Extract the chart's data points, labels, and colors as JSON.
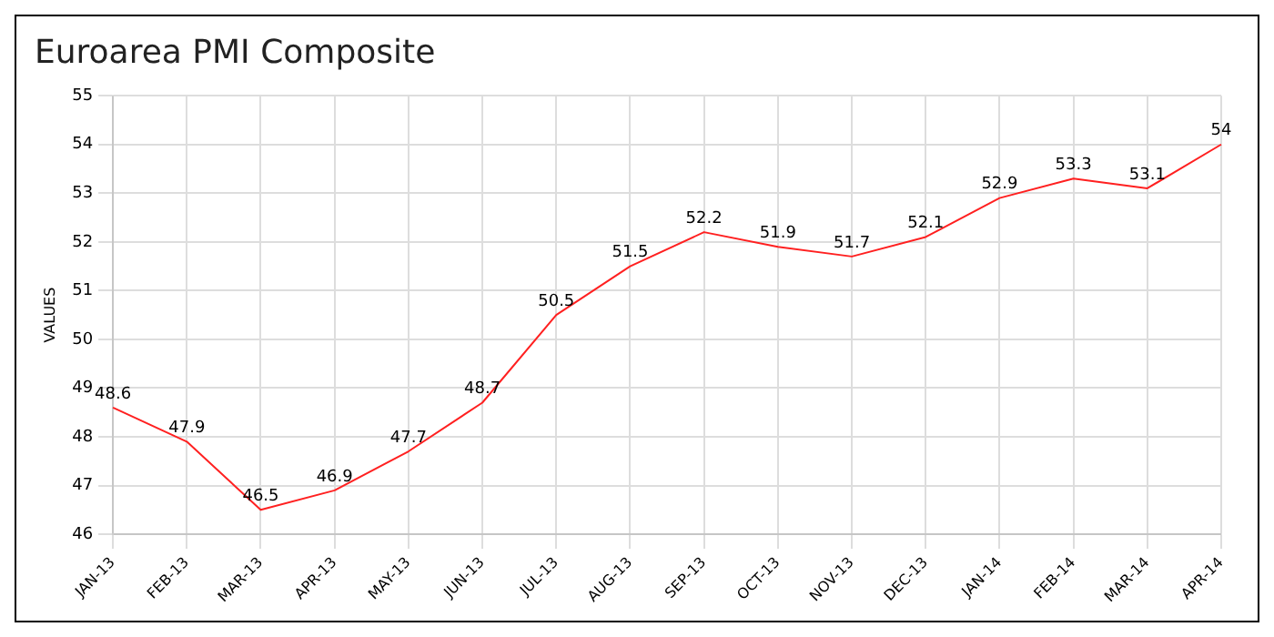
{
  "chart_data": {
    "type": "line",
    "title": "Euroarea PMI Composite",
    "ylabel": "VALUES",
    "categories": [
      "JAN-13",
      "FEB-13",
      "MAR-13",
      "APR-13",
      "MAY-13",
      "JUN-13",
      "JUL-13",
      "AUG-13",
      "SEP-13",
      "OCT-13",
      "NOV-13",
      "DEC-13",
      "JAN-14",
      "FEB-14",
      "MAR-14",
      "APR-14"
    ],
    "series": [
      {
        "color": "#ff2020",
        "values": [
          48.6,
          47.9,
          46.5,
          46.9,
          47.7,
          48.7,
          50.5,
          51.5,
          52.2,
          51.9,
          51.7,
          52.1,
          52.9,
          53.3,
          53.1,
          54
        ]
      }
    ],
    "ylim": [
      46,
      55
    ],
    "yticks": [
      46,
      47,
      48,
      49,
      50,
      51,
      52,
      53,
      54,
      55
    ],
    "grid": true,
    "data_labels": true
  }
}
